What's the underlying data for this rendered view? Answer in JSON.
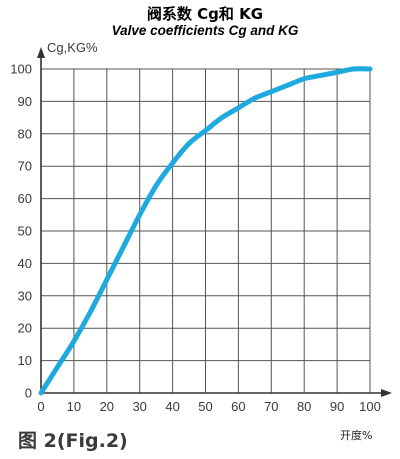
{
  "chart_data": {
    "type": "line",
    "title": "阀系数 Cg和 KG",
    "subtitle": "Valve coefficients Cg and KG",
    "ylabel": "Cg,KG%",
    "xlabel": "开度%",
    "xlim": [
      0,
      100
    ],
    "ylim": [
      0,
      100
    ],
    "x_ticks": [
      "0",
      "10",
      "20",
      "30",
      "40",
      "50",
      "60",
      "70",
      "80",
      "90",
      "100"
    ],
    "y_ticks": [
      "0",
      "10",
      "20",
      "30",
      "40",
      "50",
      "60",
      "70",
      "80",
      "90",
      "100"
    ],
    "grid": true,
    "series": [
      {
        "color": "#1fa9df",
        "x": [
          0,
          5,
          10,
          15,
          20,
          25,
          30,
          35,
          40,
          45,
          50,
          55,
          60,
          65,
          70,
          75,
          80,
          85,
          90,
          95,
          100
        ],
        "y": [
          0,
          8,
          16,
          25,
          35,
          45,
          55,
          64,
          71,
          77,
          81,
          85,
          88,
          91,
          93,
          95,
          97,
          98,
          99,
          100,
          100
        ]
      }
    ]
  },
  "figure_label": "图 2(Fig.2)"
}
